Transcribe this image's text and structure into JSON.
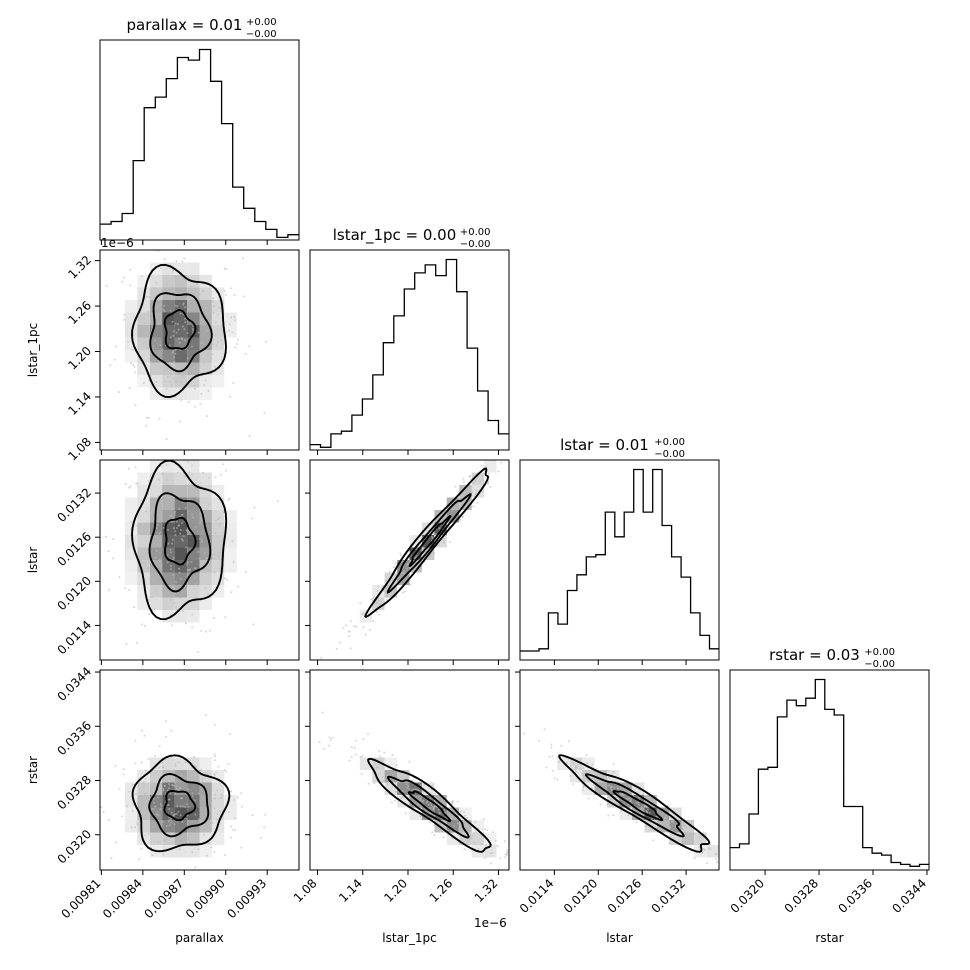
{
  "chart_data": {
    "type": "corner",
    "parameters": [
      "parallax",
      "lstar_1pc",
      "lstar",
      "rstar"
    ],
    "titles": [
      {
        "param": "parallax",
        "text": "parallax = 0.01",
        "plus": "+0.00",
        "minus": "−0.00"
      },
      {
        "param": "lstar_1pc",
        "text": "lstar_1pc = 0.00",
        "plus": "+0.00",
        "minus": "−0.00"
      },
      {
        "param": "lstar",
        "text": "lstar = 0.01",
        "plus": "+0.00",
        "minus": "−0.00"
      },
      {
        "param": "rstar",
        "text": "rstar = 0.03",
        "plus": "+0.00",
        "minus": "−0.00"
      }
    ],
    "axis_labels": {
      "x": [
        "parallax",
        "lstar_1pc",
        "lstar",
        "rstar"
      ],
      "y": [
        "lstar_1pc",
        "lstar",
        "rstar"
      ]
    },
    "ranges": {
      "parallax": [
        0.009809,
        0.009953
      ],
      "lstar_1pc": [
        1.07,
        1.334
      ],
      "lstar": [
        0.01093,
        0.01365
      ],
      "rstar": [
        0.03148,
        0.03443
      ]
    },
    "ticks": {
      "parallax": {
        "values": [
          0.00981,
          0.00984,
          0.00987,
          0.0099,
          0.00993
        ],
        "labels": [
          "0.00981",
          "0.00984",
          "0.00987",
          "0.00990",
          "0.00993"
        ]
      },
      "lstar_1pc": {
        "values": [
          1.08,
          1.14,
          1.2,
          1.26,
          1.32
        ],
        "labels": [
          "1.08",
          "1.14",
          "1.20",
          "1.26",
          "1.32"
        ],
        "offset": "1e−6"
      },
      "lstar": {
        "values": [
          0.0114,
          0.012,
          0.0126,
          0.0132
        ],
        "labels": [
          "0.0114",
          "0.0120",
          "0.0126",
          "0.0132"
        ]
      },
      "rstar": {
        "values": [
          0.032,
          0.0328,
          0.0336,
          0.0344
        ],
        "labels": [
          "0.0320",
          "0.0328",
          "0.0336",
          "0.0344"
        ]
      }
    },
    "histograms": {
      "parallax": [
        6,
        7,
        10,
        30,
        50,
        54,
        61,
        69,
        68,
        72,
        60,
        44,
        20,
        12,
        7,
        4,
        1,
        2
      ],
      "lstar_1pc": [
        2,
        1,
        6,
        7,
        13,
        19,
        28,
        40,
        50,
        60,
        66,
        69,
        65,
        71,
        59,
        38,
        22,
        11,
        6
      ],
      "lstar": [
        4,
        4,
        5,
        21,
        16,
        31,
        38,
        46,
        47,
        66,
        55,
        66,
        85,
        66,
        85,
        60,
        46,
        37,
        21,
        11,
        5
      ],
      "rstar": [
        12,
        14,
        30,
        54,
        55,
        82,
        91,
        88,
        92,
        102,
        86,
        83,
        34,
        34,
        12,
        9,
        8,
        4,
        3,
        2,
        3
      ]
    },
    "correlations": {
      "lstar_1pc|parallax": 0.0,
      "lstar|parallax": 0.0,
      "lstar|lstar_1pc": 0.98,
      "rstar|parallax": 0.0,
      "rstar|lstar_1pc": -0.93,
      "rstar|lstar": -0.94
    },
    "centers": {
      "parallax": 0.009866,
      "lstar_1pc": 1.228,
      "lstar": 0.01255,
      "rstar": 0.03244
    },
    "spreads": {
      "parallax": 1.75e-05,
      "lstar_1pc": 0.042,
      "lstar": 0.00052,
      "rstar": 0.00035
    },
    "contour_levels": 3,
    "grid": false,
    "legend": "none"
  }
}
